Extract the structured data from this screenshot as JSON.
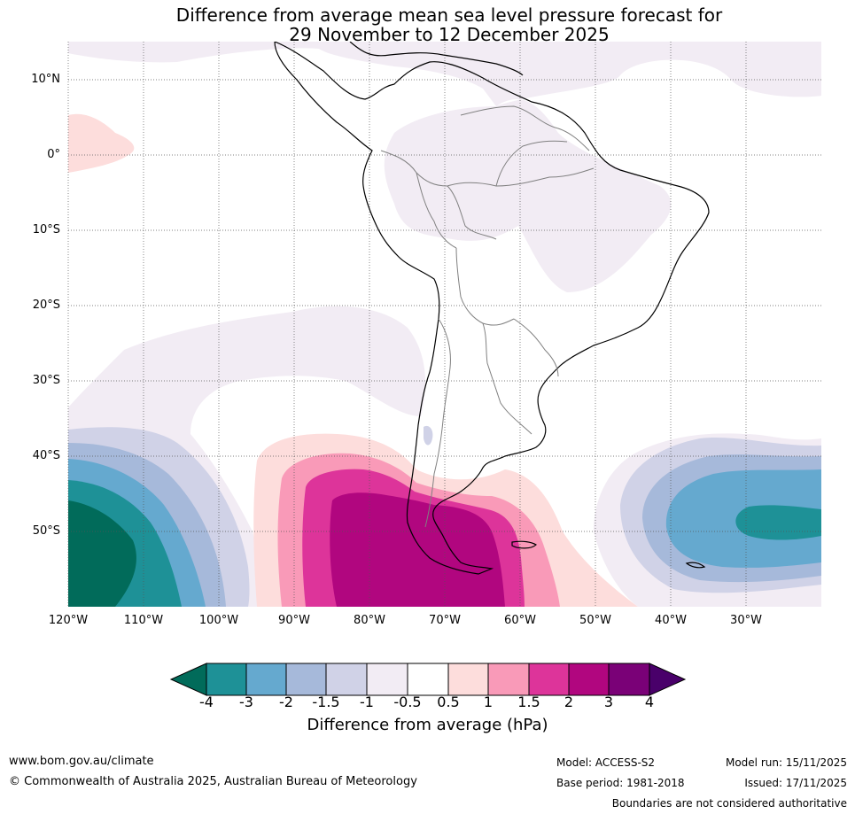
{
  "title": {
    "line1": "Difference from average mean sea level pressure forecast for",
    "line2": "29 November to 12 December 2025"
  },
  "map": {
    "lat_labels": [
      "10°N",
      "0°",
      "10°S",
      "20°S",
      "30°S",
      "40°S",
      "50°S"
    ],
    "lon_labels": [
      "120°W",
      "110°W",
      "100°W",
      "90°W",
      "80°W",
      "70°W",
      "60°W",
      "50°W",
      "40°W",
      "30°W"
    ]
  },
  "legend": {
    "title": "Difference from average (hPa)",
    "tick_labels": [
      "-4",
      "-3",
      "-2",
      "-1.5",
      "-1",
      "-0.5",
      "0.5",
      "1",
      "1.5",
      "2",
      "3",
      "4"
    ],
    "colors": [
      "#016b5a",
      "#1e9197",
      "#65a9cf",
      "#a6b9da",
      "#d0d2e7",
      "#f2ecf4",
      "#ffffff",
      "#fddddc",
      "#f99ab8",
      "#dd349a",
      "#b1067f",
      "#7a0177",
      "#49006a"
    ]
  },
  "footer": {
    "website": "www.bom.gov.au/climate",
    "copyright": "© Commonwealth of Australia 2025, Australian Bureau of Meteorology",
    "model": "Model: ACCESS-S2",
    "base_period": "Base period: 1981-2018",
    "model_run": "Model run: 15/11/2025",
    "issued": "Issued: 17/11/2025",
    "disclaimer": "Boundaries are not considered authoritative"
  }
}
